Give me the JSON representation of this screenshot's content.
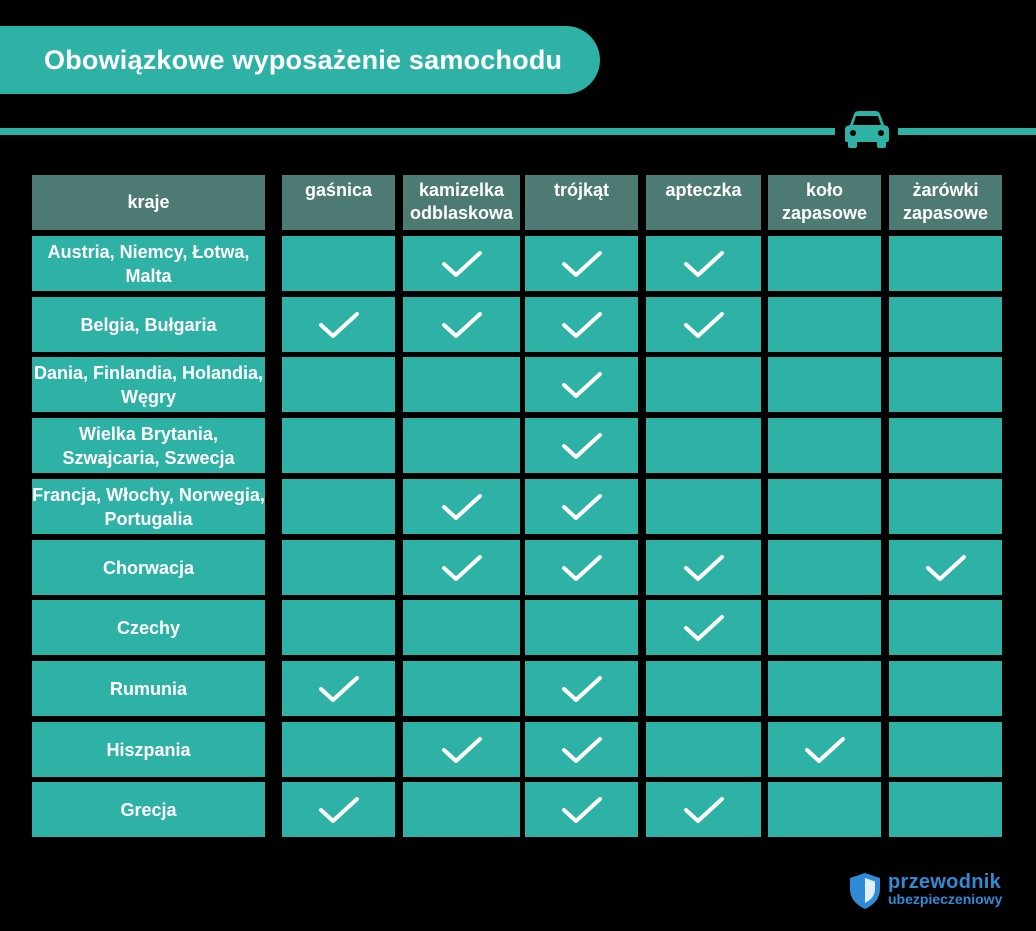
{
  "title": "Obowiązkowe wyposażenie samochodu",
  "colors": {
    "teal": "#2fb2a6",
    "header_bg": "#4d7b74",
    "background": "#000000",
    "logo_blue": "#2f8bd6"
  },
  "icons": {
    "header": "car-icon",
    "mark": "checkmark-icon",
    "logo": "shield-icon"
  },
  "table": {
    "country_header": "kraje",
    "columns": [
      "gaśnica",
      "kamizelka odblaskowa",
      "trójkąt",
      "apteczka",
      "koło zapasowe",
      "żarówki zapasowe"
    ],
    "rows": [
      {
        "country": "Austria, Niemcy, Łotwa, Malta",
        "marks": [
          false,
          true,
          true,
          true,
          false,
          false
        ]
      },
      {
        "country": "Belgia, Bułgaria",
        "marks": [
          true,
          true,
          true,
          true,
          false,
          false
        ]
      },
      {
        "country": "Dania, Finlandia, Holandia, Węgry",
        "marks": [
          false,
          false,
          true,
          false,
          false,
          false
        ]
      },
      {
        "country": "Wielka Brytania, Szwajcaria, Szwecja",
        "marks": [
          false,
          false,
          true,
          false,
          false,
          false
        ]
      },
      {
        "country": "Francja, Włochy, Norwegia, Portugalia",
        "marks": [
          false,
          true,
          true,
          false,
          false,
          false
        ]
      },
      {
        "country": "Chorwacja",
        "marks": [
          false,
          true,
          true,
          true,
          false,
          true
        ]
      },
      {
        "country": "Czechy",
        "marks": [
          false,
          false,
          false,
          true,
          false,
          false
        ]
      },
      {
        "country": "Rumunia",
        "marks": [
          true,
          false,
          true,
          false,
          false,
          false
        ]
      },
      {
        "country": "Hiszpania",
        "marks": [
          false,
          true,
          true,
          false,
          true,
          false
        ]
      },
      {
        "country": "Grecja",
        "marks": [
          true,
          false,
          true,
          true,
          false,
          false
        ]
      }
    ]
  },
  "logo": {
    "line1": "przewodnik",
    "line2": "ubezpieczeniowy"
  }
}
